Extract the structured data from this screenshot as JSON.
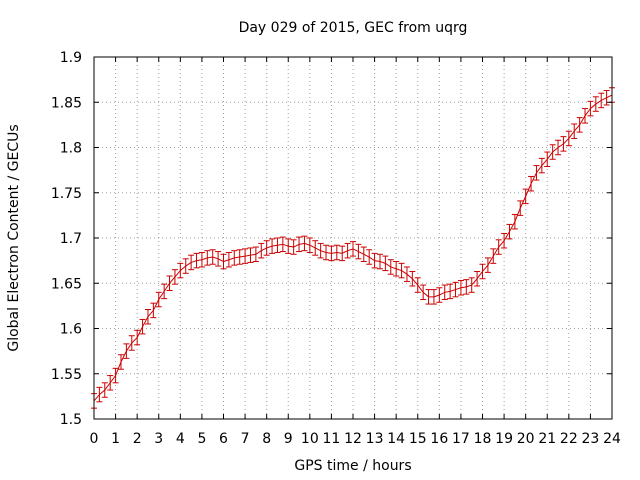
{
  "chart_data": {
    "type": "line",
    "title": "Day 029 of 2015, GEC from uqrg",
    "xlabel": "GPS time / hours",
    "ylabel": "Global Electron Content / GECUs",
    "xlim": [
      0,
      24
    ],
    "ylim": [
      1.5,
      1.9
    ],
    "xticks": [
      0,
      1,
      2,
      3,
      4,
      5,
      6,
      7,
      8,
      9,
      10,
      11,
      12,
      13,
      14,
      15,
      16,
      17,
      18,
      19,
      20,
      21,
      22,
      23,
      24
    ],
    "yticks": [
      1.5,
      1.55,
      1.6,
      1.65,
      1.7,
      1.75,
      1.8,
      1.85,
      1.9
    ],
    "ytick_labels": [
      "1.5",
      "1.55",
      "1.6",
      "1.65",
      "1.7",
      "1.75",
      "1.8",
      "1.85",
      "1.9"
    ],
    "grid": true,
    "color": "#cc0000",
    "error": 0.008,
    "x": [
      0,
      0.25,
      0.5,
      0.75,
      1,
      1.25,
      1.5,
      1.75,
      2,
      2.25,
      2.5,
      2.75,
      3,
      3.25,
      3.5,
      3.75,
      4,
      4.25,
      4.5,
      4.75,
      5,
      5.25,
      5.5,
      5.75,
      6,
      6.25,
      6.5,
      6.75,
      7,
      7.25,
      7.5,
      7.75,
      8,
      8.25,
      8.5,
      8.75,
      9,
      9.25,
      9.5,
      9.75,
      10,
      10.25,
      10.5,
      10.75,
      11,
      11.25,
      11.5,
      11.75,
      12,
      12.25,
      12.5,
      12.75,
      13,
      13.25,
      13.5,
      13.75,
      14,
      14.25,
      14.5,
      14.75,
      15,
      15.25,
      15.5,
      15.75,
      16,
      16.25,
      16.5,
      16.75,
      17,
      17.25,
      17.5,
      17.75,
      18,
      18.25,
      18.5,
      18.75,
      19,
      19.25,
      19.5,
      19.75,
      20,
      20.25,
      20.5,
      20.75,
      21,
      21.25,
      21.5,
      21.75,
      22,
      22.25,
      22.5,
      22.75,
      23,
      23.25,
      23.5,
      23.75,
      24
    ],
    "y": [
      1.52,
      1.527,
      1.532,
      1.54,
      1.548,
      1.563,
      1.575,
      1.584,
      1.59,
      1.602,
      1.613,
      1.62,
      1.632,
      1.641,
      1.65,
      1.657,
      1.664,
      1.669,
      1.673,
      1.675,
      1.676,
      1.678,
      1.679,
      1.677,
      1.674,
      1.676,
      1.678,
      1.679,
      1.68,
      1.681,
      1.682,
      1.686,
      1.689,
      1.691,
      1.692,
      1.693,
      1.691,
      1.69,
      1.693,
      1.694,
      1.692,
      1.689,
      1.686,
      1.684,
      1.683,
      1.684,
      1.683,
      1.686,
      1.688,
      1.685,
      1.682,
      1.679,
      1.675,
      1.674,
      1.672,
      1.668,
      1.666,
      1.664,
      1.66,
      1.655,
      1.648,
      1.64,
      1.635,
      1.635,
      1.637,
      1.64,
      1.641,
      1.643,
      1.645,
      1.646,
      1.648,
      1.655,
      1.663,
      1.67,
      1.68,
      1.69,
      1.697,
      1.707,
      1.718,
      1.733,
      1.746,
      1.76,
      1.772,
      1.78,
      1.787,
      1.795,
      1.8,
      1.804,
      1.81,
      1.818,
      1.825,
      1.835,
      1.843,
      1.848,
      1.852,
      1.855,
      1.858
    ]
  }
}
